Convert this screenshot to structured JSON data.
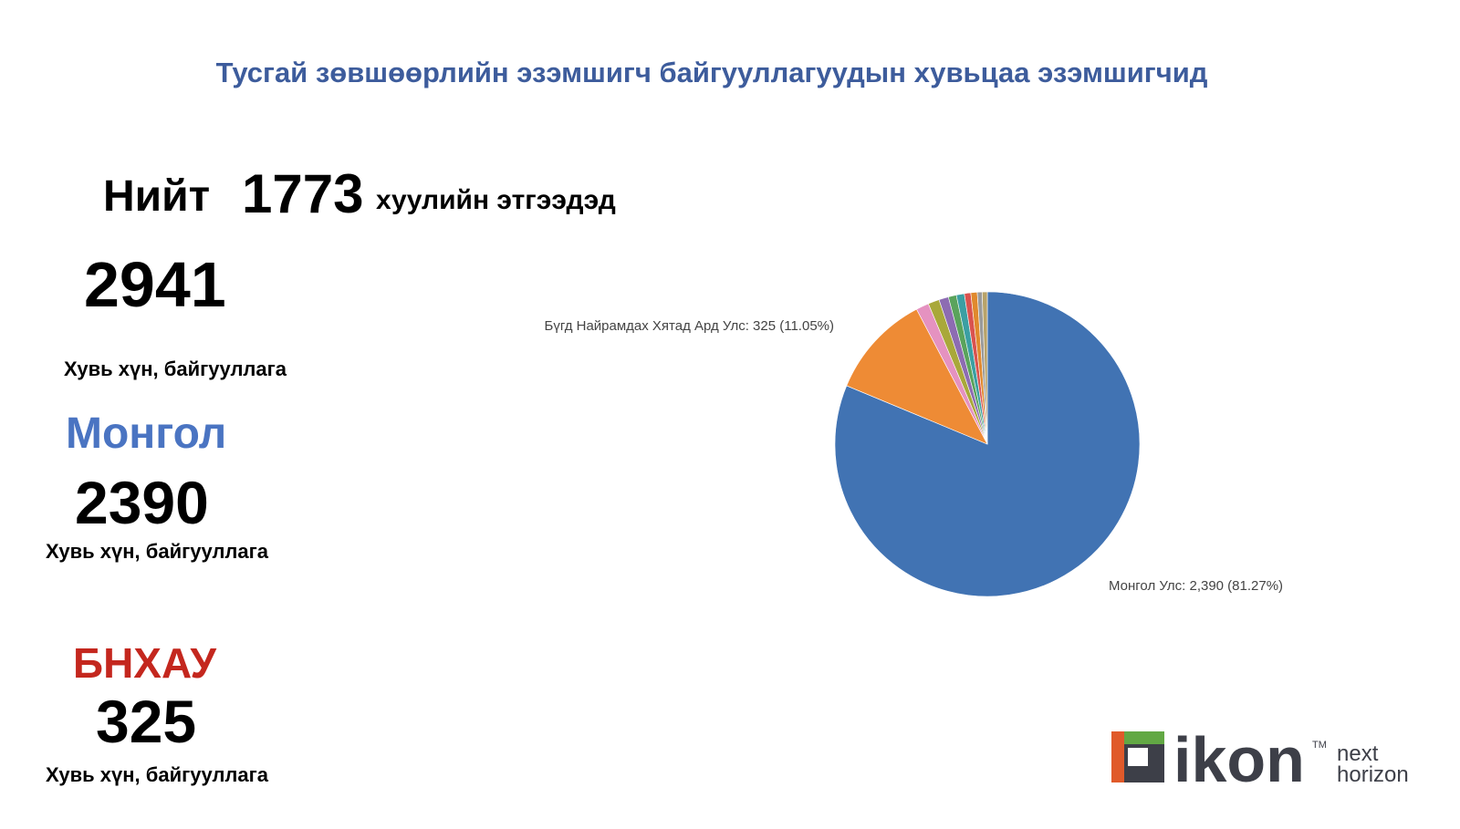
{
  "chart_data": {
    "type": "pie",
    "title": "Тусгай зөвшөөрлийн эзэмшигч байгууллагуудын хувьцаа эзэмшигчид",
    "categories": [
      "Монгол Улс",
      "Бүгд Найрамдах Хятад Ард Улс",
      null,
      null,
      null,
      null,
      null,
      null,
      null,
      null,
      null
    ],
    "values": [
      2390,
      325,
      40,
      35,
      30,
      25,
      25,
      20,
      20,
      15,
      16
    ],
    "value_labels": [
      "Монгол Улс: 2,390 (81.27%)",
      "Бүгд Найрамдах Хятад Ард Улс: 325 (11.05%)",
      null,
      null,
      null,
      null,
      null,
      null,
      null,
      null,
      null
    ],
    "colors": [
      "#4173b3",
      "#ee8b35",
      "#e592c0",
      "#a9a83a",
      "#8d6cb2",
      "#5aa35c",
      "#3b9fa3",
      "#d9534f",
      "#e0892d",
      "#9a9a9a",
      "#b8a36a"
    ]
  },
  "summary": {
    "total_label": "Нийт",
    "total_entities": "1773",
    "total_suffix": "хуулийн этгээдэд",
    "total_holders": "2941",
    "total_holders_caption": "Хувь хүн, байгууллага",
    "mongolia_label": "Монгол",
    "mongolia_value": "2390",
    "mongolia_caption": "Хувь хүн, байгууллага",
    "china_label": "БНХАУ",
    "china_value": "325",
    "china_caption": "Хувь хүн, байгууллага"
  },
  "logo": {
    "brand": "ikon",
    "trademark": "TM",
    "line1": "next",
    "line2": "horizon"
  }
}
